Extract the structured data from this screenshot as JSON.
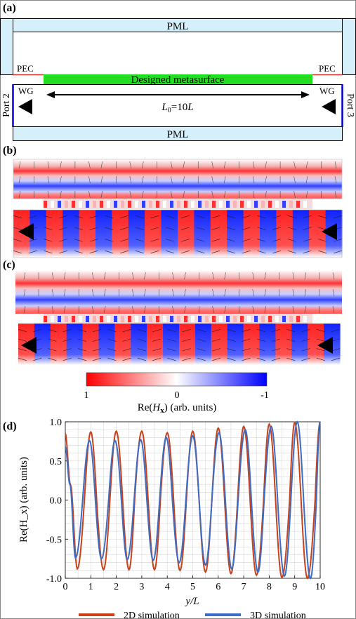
{
  "panel_labels": {
    "a": "(a)",
    "b": "(b)",
    "c": "(c)",
    "d": "(d)"
  },
  "schematic": {
    "pml_top": "PML",
    "pml_bottom": "PML",
    "pec_left": "PEC",
    "pec_right": "PEC",
    "metasurface": "Designed metasurface",
    "wg_left": "WG",
    "wg_right": "WG",
    "length_prefix": "L",
    "length_sub": "0",
    "length_suffix": "=10",
    "length_unit": "L",
    "port_left": "Port 2",
    "port_right": "Port 3",
    "colors": {
      "pml": "#d6f0fb",
      "metasurface": "#22dd22",
      "pec": "#d33",
      "wg_border": "#0000cc"
    }
  },
  "colorbar": {
    "tick_max": "1",
    "tick_mid": "0",
    "tick_min": "-1",
    "label_prefix": "Re(",
    "label_var": "H",
    "label_sub": "x",
    "label_suffix": ") (arb. units)"
  },
  "chart_data": {
    "type": "line",
    "xlabel": "y/L",
    "ylabel": "Re(H_x) (arb. units)",
    "xlim": [
      0,
      10
    ],
    "ylim": [
      -1.0,
      1.0
    ],
    "xticks": [
      "0",
      "1",
      "2",
      "3",
      "4",
      "5",
      "6",
      "7",
      "8",
      "9",
      "10"
    ],
    "yticks": [
      "1.0",
      "0.5",
      "0.0",
      "-0.5",
      "-1.0"
    ],
    "grid": true,
    "legend_position": "bottom",
    "series": [
      {
        "name": "2D simulation",
        "color": "#c8411a",
        "x": [
          0,
          0.2,
          0.47,
          0.75,
          1.0,
          1.23,
          1.5,
          1.75,
          2.0,
          2.25,
          2.5,
          2.72,
          3.0,
          3.25,
          3.5,
          3.73,
          4.0,
          4.25,
          4.5,
          4.75,
          5.0,
          5.25,
          5.5,
          5.75,
          6.0,
          6.25,
          6.5,
          6.76,
          7.0,
          7.25,
          7.5,
          7.78,
          8.0,
          8.25,
          8.5,
          8.8,
          9.0,
          9.25,
          9.5,
          9.8,
          10.0
        ],
        "y": [
          0.85,
          0.2,
          -0.88,
          0.0,
          0.87,
          0.0,
          -0.89,
          0.0,
          0.88,
          0.0,
          -0.89,
          0.0,
          0.88,
          0.0,
          -0.89,
          0.0,
          0.86,
          0.0,
          -0.9,
          0.0,
          0.88,
          0.0,
          -0.92,
          0.0,
          0.92,
          0.0,
          -0.94,
          0.0,
          0.94,
          0.0,
          -0.96,
          0.0,
          0.97,
          0.0,
          -0.99,
          0.0,
          0.99,
          0.0,
          -1.0,
          0.0,
          1.0
        ]
      },
      {
        "name": "3D simulation",
        "color": "#3d6cc4",
        "x": [
          0,
          0.18,
          0.4,
          0.68,
          0.95,
          1.18,
          1.42,
          1.7,
          1.95,
          2.2,
          2.43,
          2.7,
          2.96,
          3.2,
          3.45,
          3.7,
          3.96,
          4.2,
          4.47,
          4.73,
          5.0,
          5.25,
          5.5,
          5.75,
          6.03,
          6.28,
          6.53,
          6.78,
          7.06,
          7.3,
          7.56,
          7.8,
          8.08,
          8.33,
          8.6,
          8.85,
          9.1,
          9.35,
          9.62,
          9.85,
          10.0
        ],
        "y": [
          0.68,
          0.2,
          -0.74,
          0.0,
          0.76,
          0.0,
          -0.75,
          0.0,
          0.76,
          0.0,
          -0.76,
          0.0,
          0.77,
          0.0,
          -0.77,
          0.0,
          0.8,
          0.0,
          -0.8,
          0.0,
          0.82,
          0.0,
          -0.83,
          0.0,
          0.86,
          0.0,
          -0.88,
          0.0,
          0.9,
          0.0,
          -0.92,
          0.0,
          0.94,
          0.0,
          -0.97,
          0.0,
          1.0,
          0.0,
          -1.0,
          0.0,
          1.0
        ]
      }
    ]
  }
}
